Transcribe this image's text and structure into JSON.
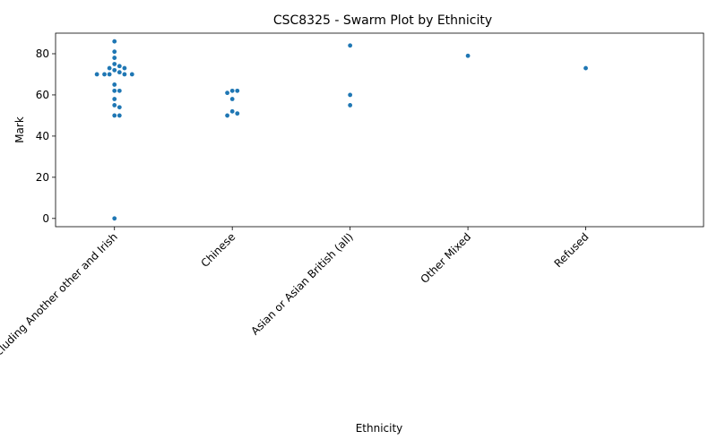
{
  "chart_data": {
    "type": "scatter",
    "subtype": "swarm",
    "title": "CSC8325 - Swarm Plot by Ethnicity",
    "xlabel": "Ethnicity",
    "ylabel": "Mark",
    "categories": [
      "White including Another other and Irish",
      "Chinese",
      "Asian or Asian British (all)",
      "Other Mixed",
      "Refused"
    ],
    "values": [
      [
        86,
        81,
        78,
        75,
        74,
        73,
        73,
        72,
        71,
        70,
        70,
        70,
        70,
        70,
        65,
        62,
        62,
        58,
        55,
        54,
        50,
        50,
        0
      ],
      [
        62,
        62,
        61,
        58,
        52,
        51,
        50
      ],
      [
        84,
        60,
        55
      ],
      [
        79
      ],
      [
        73
      ]
    ],
    "ylim": [
      -4,
      90
    ],
    "yticks": [
      0,
      20,
      40,
      60,
      80
    ],
    "grid": false,
    "legend": "none",
    "point_color": "#1f77b4"
  }
}
